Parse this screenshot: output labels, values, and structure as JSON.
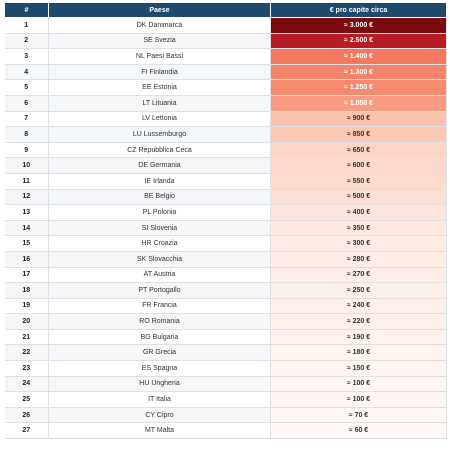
{
  "table": {
    "header": [
      "#",
      "Paese",
      "€ pro capite circa"
    ],
    "rows": [
      {
        "rank": "1",
        "country": "DK Danimarca",
        "value": "≈ 3.000 €",
        "color": "#7b0a0f"
      },
      {
        "rank": "2",
        "country": "SE Svezia",
        "value": "≈ 2.500 €",
        "color": "#b81c22"
      },
      {
        "rank": "3",
        "country": "NL Paesi Bassi",
        "value": "≈ 1.400 €",
        "color": "#f4795f"
      },
      {
        "rank": "4",
        "country": "FI Finlandia",
        "value": "≈ 1.300 €",
        "color": "#f5836a"
      },
      {
        "rank": "5",
        "country": "EE Estonia",
        "value": "≈ 1.250 €",
        "color": "#f68a70"
      },
      {
        "rank": "6",
        "country": "LT Lituania",
        "value": "≈ 1.050 €",
        "color": "#f89b82"
      },
      {
        "rank": "7",
        "country": "LV Lettonia",
        "value": "≈ 900 €",
        "color": "#fcc3ae"
      },
      {
        "rank": "8",
        "country": "LU Lussemburgo",
        "value": "≈ 850 €",
        "color": "#fcc8b4"
      },
      {
        "rank": "9",
        "country": "CZ Repubblica Ceca",
        "value": "≈ 650 €",
        "color": "#fdd5c5"
      },
      {
        "rank": "10",
        "country": "DE Germania",
        "value": "≈ 600 €",
        "color": "#fdd9ca"
      },
      {
        "rank": "11",
        "country": "IE Irlanda",
        "value": "≈ 550 €",
        "color": "#fddccf"
      },
      {
        "rank": "12",
        "country": "BE Belgio",
        "value": "≈ 500 €",
        "color": "#fde0d4"
      },
      {
        "rank": "13",
        "country": "PL Polonia",
        "value": "≈ 400 €",
        "color": "#fee5db"
      },
      {
        "rank": "14",
        "country": "SI Slovenia",
        "value": "≈ 350 €",
        "color": "#fee8df"
      },
      {
        "rank": "15",
        "country": "HR Croazia",
        "value": "≈ 300 €",
        "color": "#feebe3"
      },
      {
        "rank": "16",
        "country": "SK Slovacchia",
        "value": "≈ 280 €",
        "color": "#feece5"
      },
      {
        "rank": "17",
        "country": "AT Austria",
        "value": "≈ 270 €",
        "color": "#feede6"
      },
      {
        "rank": "18",
        "country": "PT Portogallo",
        "value": "≈ 250 €",
        "color": "#feeee8"
      },
      {
        "rank": "19",
        "country": "FR Francia",
        "value": "≈ 240 €",
        "color": "#ffefe9"
      },
      {
        "rank": "20",
        "country": "RO Romania",
        "value": "≈ 220 €",
        "color": "#fff0eb"
      },
      {
        "rank": "21",
        "country": "BG Bulgaria",
        "value": "≈ 190 €",
        "color": "#fff2ed"
      },
      {
        "rank": "22",
        "country": "GR Grecia",
        "value": "≈ 180 €",
        "color": "#fff3ee"
      },
      {
        "rank": "23",
        "country": "ES Spagna",
        "value": "≈ 150 €",
        "color": "#fff4f0"
      },
      {
        "rank": "24",
        "country": "HU Ungheria",
        "value": "≈ 100 €",
        "color": "#fff6f3"
      },
      {
        "rank": "25",
        "country": "IT Italia",
        "value": "≈ 100 €",
        "color": "#fff6f3"
      },
      {
        "rank": "26",
        "country": "CY Cipro",
        "value": "≈ 70 €",
        "color": "#fff8f5"
      },
      {
        "rank": "27",
        "country": "MT Malta",
        "value": "≈ 60 €",
        "color": "#fff8f6"
      }
    ]
  }
}
